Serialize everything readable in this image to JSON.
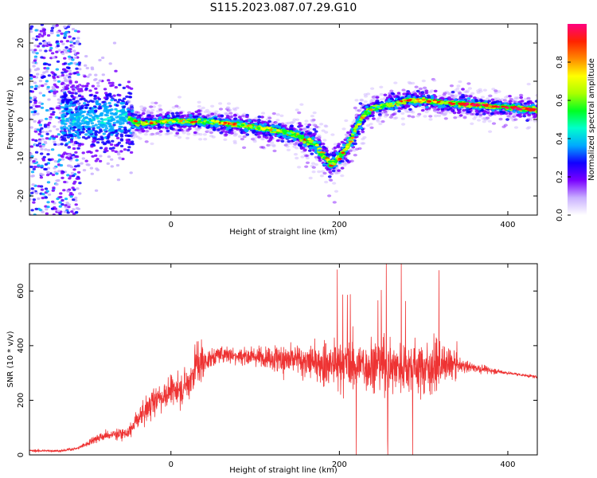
{
  "figure": {
    "title": "S115.2023.087.07.29.G10"
  },
  "chart_data": [
    {
      "type": "heatmap",
      "title": "S115.2023.087.07.29.G10",
      "xlabel": "Height of straight line (km)",
      "ylabel": "Frequency (Hz)",
      "xlim": [
        -168,
        435
      ],
      "ylim": [
        -25,
        25
      ],
      "xticks": [
        0,
        200,
        400
      ],
      "yticks": [
        -20,
        -10,
        0,
        10,
        20
      ],
      "grid": false,
      "ridge": {
        "x": [
          -110,
          -80,
          -60,
          -50,
          -40,
          0,
          50,
          100,
          140,
          170,
          180,
          190,
          200,
          210,
          220,
          230,
          240,
          260,
          280,
          300,
          320,
          350,
          380,
          410,
          435
        ],
        "y": [
          0,
          0,
          1,
          0.5,
          -1,
          -0.5,
          -0.5,
          -2,
          -3.5,
          -6,
          -9,
          -12,
          -10,
          -7,
          -2,
          1.5,
          3,
          4,
          5,
          5,
          4.5,
          4,
          3.5,
          3,
          2.5
        ]
      },
      "colorbar": {
        "label": "Normalized spectral amplitude",
        "range": [
          0,
          1
        ],
        "ticks": [
          0.0,
          0.2,
          0.4,
          0.6,
          0.8
        ],
        "tick_labels": [
          "0.0",
          "0.2",
          "0.4",
          "0.6",
          "0.8"
        ],
        "colormap": [
          "#ffffff",
          "#c9b0ff",
          "#7a00ff",
          "#1200ff",
          "#00aaff",
          "#00ffcc",
          "#00ff22",
          "#aaff00",
          "#ffff00",
          "#ff8800",
          "#ff2200",
          "#ff0080"
        ]
      }
    },
    {
      "type": "line",
      "xlabel": "Height of straight line (km)",
      "ylabel": "SNR (10 * v/v)",
      "xlim": [
        -168,
        435
      ],
      "ylim": [
        0,
        700
      ],
      "xticks": [
        0,
        200,
        400
      ],
      "yticks": [
        0,
        200,
        400,
        600
      ],
      "grid": false,
      "series": [
        {
          "color": "#ee3333",
          "envelope_x": [
            -168,
            -130,
            -110,
            -100,
            -90,
            -70,
            -50,
            -40,
            -30,
            -20,
            0,
            20,
            30,
            60,
            100,
            150,
            200,
            250,
            300,
            340,
            360,
            400,
            435
          ],
          "envelope_y": [
            15,
            15,
            25,
            40,
            60,
            75,
            80,
            130,
            160,
            200,
            230,
            260,
            330,
            370,
            360,
            345,
            330,
            330,
            320,
            330,
            320,
            300,
            285
          ]
        }
      ]
    }
  ]
}
